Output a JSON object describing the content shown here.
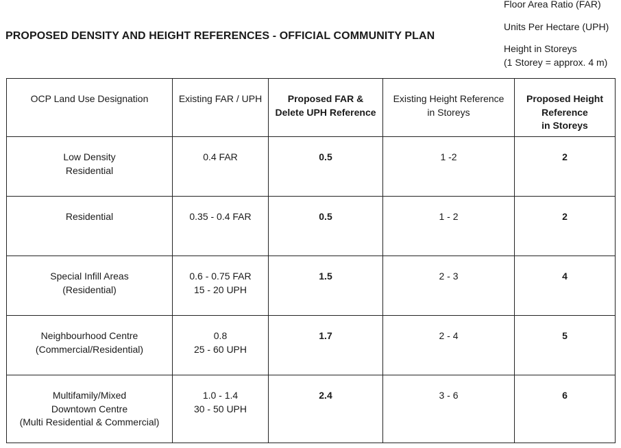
{
  "title": "PROPOSED DENSITY AND HEIGHT REFERENCES - OFFICIAL COMMUNITY PLAN",
  "legend": {
    "far": "Floor Area Ratio (FAR)",
    "uph": "Units Per Hectare (UPH)",
    "height": "Height in Storeys",
    "height_note": "(1 Storey = approx. 4 m)"
  },
  "table": {
    "headers": [
      [
        "OCP Land Use Designation"
      ],
      [
        "Existing FAR / UPH"
      ],
      [
        "Proposed FAR &",
        "Delete UPH Reference"
      ],
      [
        "Existing Height Reference",
        "in Storeys"
      ],
      [
        "Proposed Height",
        "Reference",
        "in Storeys"
      ]
    ],
    "rows": [
      {
        "designation": [
          "Low Density",
          "Residential"
        ],
        "existing_far_uph": [
          "0.4 FAR"
        ],
        "proposed_far": "0.5",
        "existing_height": "1 -2",
        "proposed_height": "2"
      },
      {
        "designation": [
          "Residential"
        ],
        "existing_far_uph": [
          "0.35 - 0.4 FAR"
        ],
        "proposed_far": "0.5",
        "existing_height": "1 - 2",
        "proposed_height": "2"
      },
      {
        "designation": [
          "Special Infill Areas",
          "(Residential)"
        ],
        "existing_far_uph": [
          "0.6 - 0.75 FAR",
          "15 - 20 UPH"
        ],
        "proposed_far": "1.5",
        "existing_height": "2 - 3",
        "proposed_height": "4"
      },
      {
        "designation": [
          "Neighbourhood Centre",
          "(Commercial/Residential)"
        ],
        "existing_far_uph": [
          "0.8",
          "25 - 60 UPH"
        ],
        "proposed_far": "1.7",
        "existing_height": "2 - 4",
        "proposed_height": "5"
      },
      {
        "designation": [
          "Multifamily/Mixed",
          "Downtown Centre",
          "(Multi Residential & Commercial)"
        ],
        "existing_far_uph": [
          "1.0 - 1.4",
          "30 - 50 UPH"
        ],
        "proposed_far": "2.4",
        "existing_height": "3 - 6",
        "proposed_height": "6"
      }
    ]
  }
}
